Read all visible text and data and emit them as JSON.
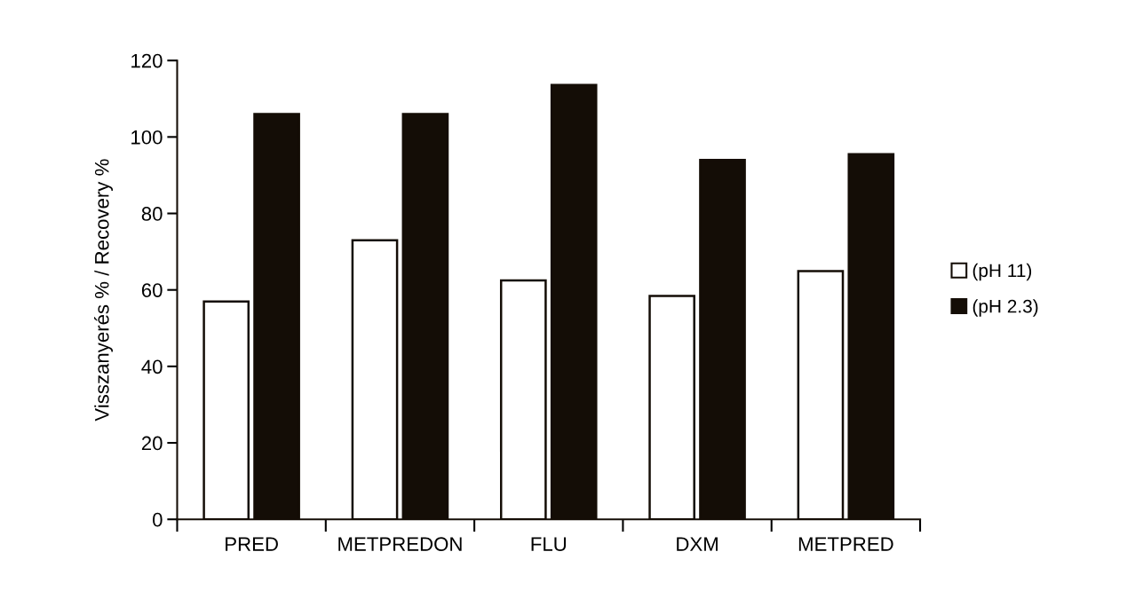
{
  "chart_data": {
    "type": "bar",
    "ylabel": "Visszanyerés % / Recovery %",
    "categories": [
      "PRED",
      "METPREDON",
      "FLU",
      "DXM",
      "METPRED"
    ],
    "series": [
      {
        "name": "(pH 11)",
        "color": "#ffffff",
        "values": [
          57,
          73,
          62.5,
          58.4,
          64.9
        ]
      },
      {
        "name": "(pH 2.3)",
        "color": "#140d06",
        "values": [
          106,
          106,
          113.6,
          94,
          95.5
        ]
      }
    ],
    "ylim": [
      0,
      120
    ],
    "yticks": [
      0,
      20,
      40,
      60,
      80,
      100,
      120
    ],
    "grid": false,
    "legend": "right"
  }
}
